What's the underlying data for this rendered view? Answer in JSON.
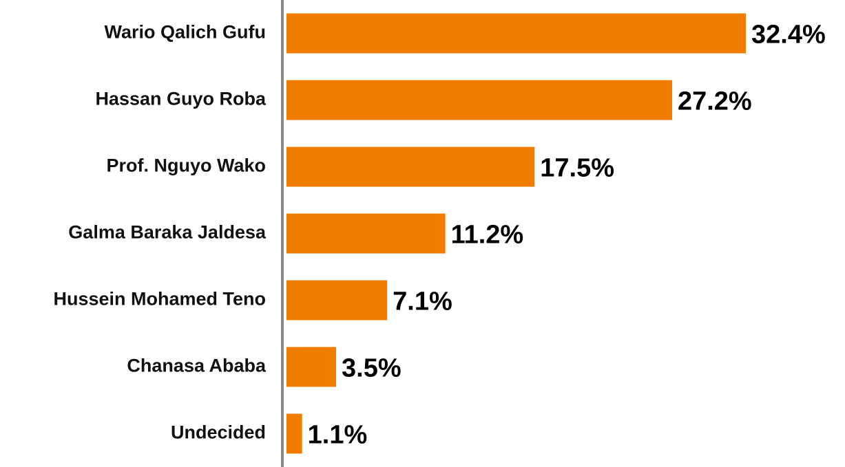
{
  "chart_data": {
    "type": "bar",
    "orientation": "horizontal",
    "categories": [
      "Wario Qalich Gufu",
      "Hassan Guyo Roba",
      "Prof. Nguyo Wako",
      "Galma Baraka Jaldesa",
      "Hussein Mohamed Teno",
      "Chanasa Ababa",
      "Undecided"
    ],
    "values": [
      32.4,
      27.2,
      17.5,
      11.2,
      7.1,
      3.5,
      1.1
    ],
    "value_labels": [
      "32.4%",
      "27.2%",
      "17.5%",
      "11.2%",
      "7.1%",
      "3.5%",
      "1.1%"
    ],
    "color": "#f07c00"
  }
}
